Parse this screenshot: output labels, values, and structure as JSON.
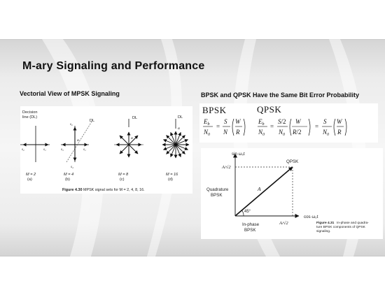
{
  "slide": {
    "title": "M-ary Signaling and Performance",
    "left_heading": "Vectorial View of MPSK Signaling",
    "right_heading": "BPSK and QPSK Have the Same Bit Error Probability"
  },
  "mpsk_figure": {
    "decision_line_label": "Decision\nline (DL)",
    "dl": "DL",
    "vector_labels": {
      "s1": "s₁",
      "s2": "s₂",
      "s3": "s₃",
      "s4": "s₄",
      "alpha": "α"
    },
    "panels": [
      {
        "m": "M = 2",
        "letter": "(a)"
      },
      {
        "m": "M = 4",
        "letter": "(b)"
      },
      {
        "m": "M = 8",
        "letter": "(c)"
      },
      {
        "m": "M = 16",
        "letter": "(d)"
      }
    ],
    "caption_num": "Figure 4.30",
    "caption_text": "MPSK signal sets for M = 2, 4, 8, 16."
  },
  "formulas": {
    "bpsk_label": "BPSK",
    "qpsk_label": "QPSK"
  },
  "iq_figure": {
    "y_axis": "sin ω₀t",
    "x_axis": "cos ω₀t",
    "y_tick": "A/√2",
    "x_tick": "A/√2",
    "vector": "A",
    "angle": "45°",
    "qpsk": "QPSK",
    "quad_line1": "Quadrature",
    "quad_line2": "BPSK",
    "inphase_line1": "In-phase",
    "inphase_line2": "BPSK",
    "caption_num": "Figure 4.31",
    "caption_lines": [
      "In-phase and quadra-",
      "ture BPSK components of QPSK",
      "signaling."
    ]
  }
}
